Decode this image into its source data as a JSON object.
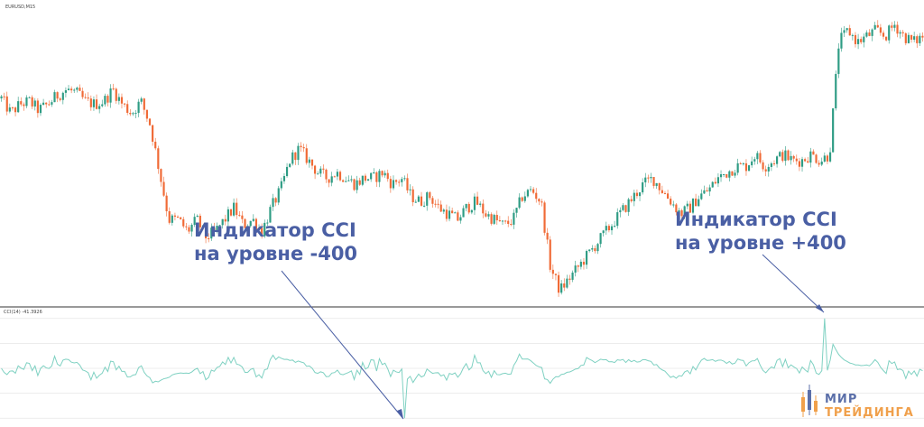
{
  "chart_data": {
    "type": "candlestick-with-oscillator",
    "symbol_label": "EURUSD,M15",
    "price_panel": {
      "up_color": "#2e9c84",
      "down_color": "#f06a36",
      "close_path": [
        0.905,
        0.88,
        0.895,
        0.9,
        0.885,
        0.895,
        0.91,
        0.92,
        0.915,
        0.9,
        0.895,
        0.9,
        0.92,
        0.895,
        0.88,
        0.9,
        0.86,
        0.78,
        0.7,
        0.7,
        0.68,
        0.7,
        0.67,
        0.68,
        0.7,
        0.72,
        0.69,
        0.7,
        0.68,
        0.72,
        0.75,
        0.8,
        0.82,
        0.8,
        0.78,
        0.77,
        0.78,
        0.77,
        0.76,
        0.77,
        0.77,
        0.78,
        0.76,
        0.77,
        0.74,
        0.73,
        0.74,
        0.72,
        0.71,
        0.7,
        0.72,
        0.73,
        0.71,
        0.7,
        0.69,
        0.7,
        0.74,
        0.75,
        0.73,
        0.62,
        0.58,
        0.6,
        0.62,
        0.64,
        0.66,
        0.68,
        0.7,
        0.72,
        0.74,
        0.76,
        0.77,
        0.75,
        0.73,
        0.71,
        0.72,
        0.74,
        0.75,
        0.77,
        0.78,
        0.79,
        0.79,
        0.81,
        0.79,
        0.8,
        0.81,
        0.8,
        0.8,
        0.81,
        0.8,
        0.81,
        1.0,
        1.02,
        1.0,
        1.01,
        1.02,
        1.01,
        1.03,
        1.01,
        1.0,
        1.01
      ],
      "annotation_left": {
        "line1": "Индикатор CCI",
        "line2": "на уровне -400"
      },
      "annotation_right": {
        "line1": "Индикатор CCI",
        "line2": "на уровне +400"
      }
    },
    "oscillator_panel": {
      "label": "CCI(14) -41.3926",
      "line_color": "#7fd1c2",
      "levels": [
        400,
        200,
        0,
        -200,
        -400
      ],
      "extreme_low": -400,
      "extreme_high": 400
    }
  },
  "brand": {
    "line1": "МИР",
    "line2": "ТРЕЙДИНГА",
    "accent_blue": "#5b6fa9",
    "accent_orange": "#f0a04b"
  }
}
